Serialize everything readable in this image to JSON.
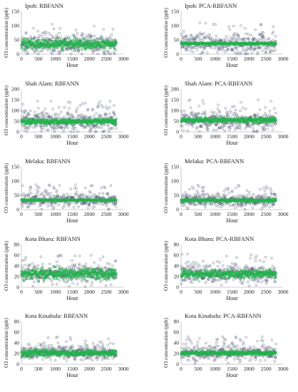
{
  "figure": {
    "shared_xlabel": "Hour",
    "shared_ylabel": "O3 concentration (ppb)",
    "observed_color": "#2e3a55",
    "predicted_color": "#22b24c"
  },
  "chart_data": [
    {
      "type": "scatter",
      "title": "Ipoh: RBFANN",
      "xlabel": "Hour",
      "ylabel": "O3 concentration (ppb)",
      "xlim": [
        0,
        3000
      ],
      "ylim": [
        0,
        150
      ],
      "xticks": [
        0,
        500,
        1000,
        1500,
        2000,
        2500,
        3000
      ],
      "yticks": [
        0,
        50,
        100,
        150
      ],
      "series": [
        {
          "role": "observed",
          "n_points": 2800,
          "x_range": [
            1,
            2800
          ],
          "mean": 35,
          "spread": 22,
          "max": 118
        },
        {
          "role": "predicted",
          "n_points": 2800,
          "x_range": [
            1,
            2800
          ],
          "mean": 35,
          "spread": 13,
          "max": 100
        }
      ],
      "grid": false,
      "legend": "none"
    },
    {
      "type": "scatter",
      "title": "Ipoh: PCA-RBFANN",
      "xlabel": "Hour",
      "ylabel": "O3 concentration (ppb)",
      "xlim": [
        0,
        3000
      ],
      "ylim": [
        0,
        150
      ],
      "xticks": [
        0,
        500,
        1000,
        1500,
        2000,
        2500,
        3000
      ],
      "yticks": [
        0,
        50,
        100,
        150
      ],
      "series": [
        {
          "role": "observed",
          "n_points": 2800,
          "x_range": [
            1,
            2800
          ],
          "mean": 36,
          "spread": 22,
          "max": 118
        },
        {
          "role": "predicted",
          "n_points": 2800,
          "x_range": [
            1,
            2800
          ],
          "mean": 37,
          "spread": 3,
          "max": 45
        }
      ],
      "grid": false,
      "legend": "none"
    },
    {
      "type": "scatter",
      "title": "Shah Alam: RBFANN",
      "xlabel": "Hour",
      "ylabel": "O3 concentration (ppb)",
      "xlim": [
        0,
        3000
      ],
      "ylim": [
        0,
        200
      ],
      "xticks": [
        0,
        500,
        1000,
        1500,
        2000,
        2500,
        3000
      ],
      "yticks": [
        0,
        50,
        100,
        150,
        200
      ],
      "series": [
        {
          "role": "observed",
          "n_points": 2800,
          "x_range": [
            1,
            2800
          ],
          "mean": 48,
          "spread": 30,
          "max": 175
        },
        {
          "role": "predicted",
          "n_points": 2800,
          "x_range": [
            1,
            2800
          ],
          "mean": 48,
          "spread": 10,
          "max": 110
        }
      ],
      "grid": false,
      "legend": "none"
    },
    {
      "type": "scatter",
      "title": "Shah Alam: PCA-RBFANN",
      "xlabel": "Hour",
      "ylabel": "O3 concentration (ppb)",
      "xlim": [
        0,
        3000
      ],
      "ylim": [
        0,
        200
      ],
      "xticks": [
        0,
        500,
        1000,
        1500,
        2000,
        2500,
        3000
      ],
      "yticks": [
        0,
        50,
        100,
        150,
        200
      ],
      "series": [
        {
          "role": "observed",
          "n_points": 2800,
          "x_range": [
            1,
            2800
          ],
          "mean": 50,
          "spread": 30,
          "max": 180
        },
        {
          "role": "predicted",
          "n_points": 2800,
          "x_range": [
            1,
            2800
          ],
          "mean": 55,
          "spread": 9,
          "max": 80
        }
      ],
      "grid": false,
      "legend": "none"
    },
    {
      "type": "scatter",
      "title": "Melaka: RBFANN",
      "xlabel": "Hour",
      "ylabel": "O3 concentration (ppb)",
      "xlim": [
        0,
        3000
      ],
      "ylim": [
        0,
        150
      ],
      "xticks": [
        0,
        500,
        1000,
        1500,
        2000,
        2500,
        3000
      ],
      "yticks": [
        0,
        50,
        100,
        150
      ],
      "series": [
        {
          "role": "observed",
          "n_points": 2800,
          "x_range": [
            1,
            2800
          ],
          "mean": 33,
          "spread": 16,
          "max": 110
        },
        {
          "role": "predicted",
          "n_points": 2800,
          "x_range": [
            1,
            2800
          ],
          "mean": 33,
          "spread": 2.5,
          "max": 40
        }
      ],
      "grid": false,
      "legend": "none"
    },
    {
      "type": "scatter",
      "title": "Melaka: PCA-RBFANN",
      "xlabel": "Hour",
      "ylabel": "O3 concentration (ppb)",
      "xlim": [
        0,
        3000
      ],
      "ylim": [
        0,
        150
      ],
      "xticks": [
        0,
        500,
        1000,
        1500,
        2000,
        2500,
        3000
      ],
      "yticks": [
        0,
        50,
        100,
        150
      ],
      "series": [
        {
          "role": "observed",
          "n_points": 2800,
          "x_range": [
            1,
            2800
          ],
          "mean": 33,
          "spread": 16,
          "max": 108
        },
        {
          "role": "predicted",
          "n_points": 2800,
          "x_range": [
            1,
            2800
          ],
          "mean": 32,
          "spread": 4,
          "max": 45
        }
      ],
      "grid": false,
      "legend": "none"
    },
    {
      "type": "scatter",
      "title": "Kota Bharu: RBFANN",
      "xlabel": "Hour",
      "ylabel": "O3 concentration (ppb)",
      "xlim": [
        0,
        3000
      ],
      "ylim": [
        0,
        80
      ],
      "xticks": [
        0,
        500,
        1000,
        1500,
        2000,
        2500,
        3000
      ],
      "yticks": [
        0,
        20,
        40,
        60,
        80
      ],
      "series": [
        {
          "role": "observed",
          "n_points": 2800,
          "x_range": [
            1,
            2800
          ],
          "mean": 25,
          "spread": 11,
          "max": 70
        },
        {
          "role": "predicted",
          "n_points": 2800,
          "x_range": [
            1,
            2800
          ],
          "mean": 25,
          "spread": 8,
          "max": 62
        }
      ],
      "grid": false,
      "legend": "none"
    },
    {
      "type": "scatter",
      "title": "Kota Bharu: PCA-RBFANN",
      "xlabel": "Hour",
      "ylabel": "O3 concentration (ppb)",
      "xlim": [
        0,
        3000
      ],
      "ylim": [
        0,
        80
      ],
      "xticks": [
        0,
        500,
        1000,
        1500,
        2000,
        2500,
        3000
      ],
      "yticks": [
        0,
        20,
        40,
        60,
        80
      ],
      "series": [
        {
          "role": "observed",
          "n_points": 2800,
          "x_range": [
            1,
            2800
          ],
          "mean": 25,
          "spread": 11,
          "max": 70
        },
        {
          "role": "predicted",
          "n_points": 2800,
          "x_range": [
            1,
            2800
          ],
          "mean": 25,
          "spread": 6,
          "max": 55
        }
      ],
      "grid": false,
      "legend": "none"
    },
    {
      "type": "scatter",
      "title": "Kota Kinabalu: RBFANN",
      "xlabel": "Hour",
      "ylabel": "O3 concentration (ppb)",
      "xlim": [
        0,
        3000
      ],
      "ylim": [
        0,
        80
      ],
      "xticks": [
        0,
        500,
        1000,
        1500,
        2000,
        2500,
        3000
      ],
      "yticks": [
        0,
        20,
        40,
        60,
        80
      ],
      "series": [
        {
          "role": "observed",
          "n_points": 2800,
          "x_range": [
            1,
            2800
          ],
          "mean": 21,
          "spread": 9,
          "max": 58
        },
        {
          "role": "predicted",
          "n_points": 2800,
          "x_range": [
            1,
            2800
          ],
          "mean": 21,
          "spread": 5,
          "max": 40
        }
      ],
      "grid": false,
      "legend": "none"
    },
    {
      "type": "scatter",
      "title": "Kota Kinabalu: PCA-RBFANN",
      "xlabel": "Hour",
      "ylabel": "O3 concentration (ppb)",
      "xlim": [
        0,
        3000
      ],
      "ylim": [
        0,
        80
      ],
      "xticks": [
        0,
        500,
        1000,
        1500,
        2000,
        2500,
        3000
      ],
      "yticks": [
        0,
        20,
        40,
        60,
        80
      ],
      "series": [
        {
          "role": "observed",
          "n_points": 2800,
          "x_range": [
            1,
            2800
          ],
          "mean": 21,
          "spread": 9,
          "max": 58
        },
        {
          "role": "predicted",
          "n_points": 2800,
          "x_range": [
            1,
            2800
          ],
          "mean": 21,
          "spread": 3,
          "max": 30
        }
      ],
      "grid": false,
      "legend": "none"
    }
  ]
}
